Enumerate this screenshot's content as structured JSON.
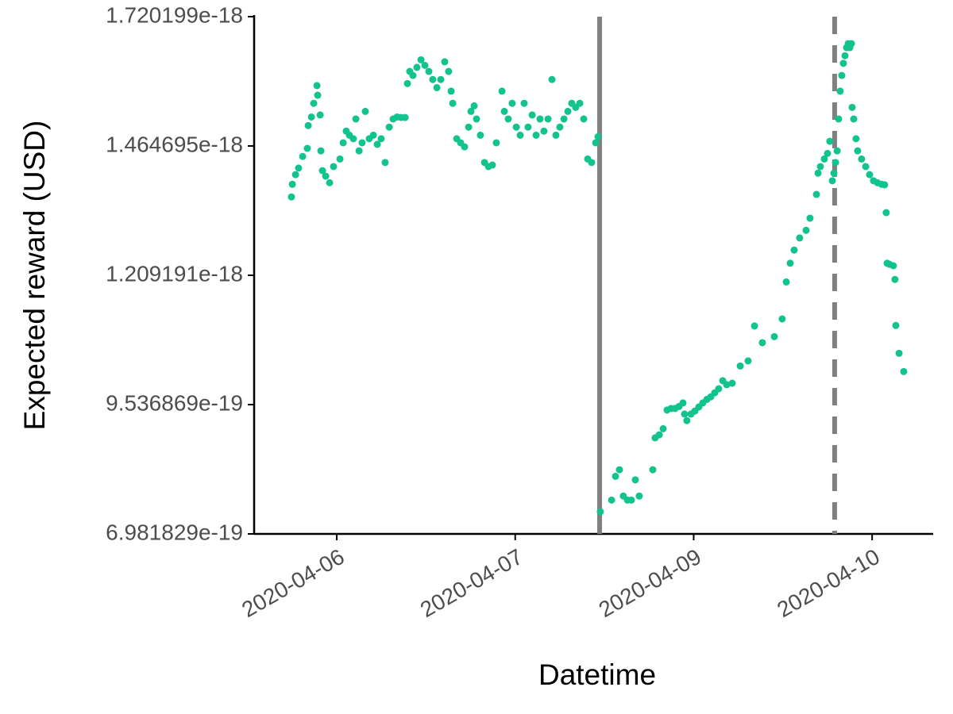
{
  "chart_data": {
    "type": "scatter",
    "x_label": "Datetime",
    "y_label": "Expected reward (USD)",
    "xlim": [
      -0.463,
      3.342
    ],
    "xticks": [
      {
        "value": 0,
        "label": "2020-04-06"
      },
      {
        "value": 1,
        "label": "2020-04-07"
      },
      {
        "value": 2,
        "label": "2020-04-09"
      },
      {
        "value": 3,
        "label": "2020-04-10"
      }
    ],
    "ylim": [
      6.981829e-19,
      1.720199e-18
    ],
    "yticks": [
      6.981829e-19,
      9.536869e-19,
      1.209191e-18,
      1.464695e-18,
      1.720199e-18
    ],
    "grid": false,
    "vlines": [
      {
        "x": 1.473,
        "linestyle": "solid",
        "color": "#808080"
      },
      {
        "x": 2.79,
        "linestyle": "dashed",
        "color": "#808080"
      }
    ],
    "series": [
      {
        "color": "#12c38e",
        "x": [
          -0.254,
          -0.249,
          -0.231,
          -0.214,
          -0.191,
          -0.165,
          -0.16,
          -0.142,
          -0.129,
          -0.111,
          -0.107,
          -0.093,
          -0.089,
          -0.08,
          -0.062,
          -0.04,
          -0.018,
          0.018,
          0.036,
          0.053,
          0.071,
          0.093,
          0.107,
          0.125,
          0.142,
          0.16,
          0.182,
          0.205,
          0.227,
          0.249,
          0.271,
          0.294,
          0.316,
          0.338,
          0.36,
          0.383,
          0.396,
          0.409,
          0.427,
          0.449,
          0.472,
          0.494,
          0.516,
          0.538,
          0.561,
          0.583,
          0.605,
          0.627,
          0.641,
          0.65,
          0.672,
          0.694,
          0.716,
          0.739,
          0.752,
          0.77,
          0.783,
          0.805,
          0.828,
          0.85,
          0.872,
          0.894,
          0.926,
          0.939,
          0.961,
          0.983,
          1.006,
          1.028,
          1.05,
          1.072,
          1.095,
          1.117,
          1.139,
          1.161,
          1.184,
          1.206,
          1.228,
          1.25,
          1.273,
          1.295,
          1.317,
          1.339,
          1.362,
          1.384,
          1.406,
          1.428,
          1.451,
          1.464,
          1.477,
          1.54,
          1.562,
          1.584,
          1.606,
          1.629,
          1.651,
          1.673,
          1.695,
          1.771,
          1.784,
          1.807,
          1.829,
          1.851,
          1.873,
          1.896,
          1.918,
          1.94,
          1.949,
          1.962,
          1.985,
          2.007,
          2.029,
          2.051,
          2.074,
          2.096,
          2.118,
          2.14,
          2.163,
          2.185,
          2.216,
          2.261,
          2.305,
          2.341,
          2.385,
          2.452,
          2.496,
          2.519,
          2.541,
          2.563,
          2.594,
          2.63,
          2.652,
          2.688,
          2.697,
          2.71,
          2.732,
          2.75,
          2.763,
          2.777,
          2.786,
          2.795,
          2.804,
          2.812,
          2.821,
          2.83,
          2.839,
          2.848,
          2.857,
          2.866,
          2.875,
          2.884,
          2.888,
          2.897,
          2.91,
          2.919,
          2.941,
          2.964,
          2.986,
          3.008,
          3.03,
          3.053,
          3.07,
          3.079,
          3.084,
          3.097,
          3.119,
          3.128,
          3.133,
          3.151,
          3.177
        ],
        "values": [
          1.364e-18,
          1.389e-18,
          1.408e-18,
          1.421e-18,
          1.444e-18,
          1.46e-18,
          1.505e-18,
          1.522e-18,
          1.549e-18,
          1.584e-18,
          1.565e-18,
          1.526e-18,
          1.455e-18,
          1.416e-18,
          1.405e-18,
          1.392e-18,
          1.424e-18,
          1.439e-18,
          1.471e-18,
          1.494e-18,
          1.486e-18,
          1.479e-18,
          1.518e-18,
          1.455e-18,
          1.471e-18,
          1.533e-18,
          1.479e-18,
          1.486e-18,
          1.468e-18,
          1.479e-18,
          1.432e-18,
          1.502e-18,
          1.518e-18,
          1.522e-18,
          1.521e-18,
          1.521e-18,
          1.588e-18,
          1.612e-18,
          1.604e-18,
          1.62e-18,
          1.635e-18,
          1.624e-18,
          1.612e-18,
          1.596e-18,
          1.58e-18,
          1.596e-18,
          1.631e-18,
          1.612e-18,
          1.573e-18,
          1.549e-18,
          1.479e-18,
          1.471e-18,
          1.463e-18,
          1.502e-18,
          1.533e-18,
          1.544e-18,
          1.518e-18,
          1.486e-18,
          1.432e-18,
          1.424e-18,
          1.427e-18,
          1.471e-18,
          1.573e-18,
          1.533e-18,
          1.518e-18,
          1.549e-18,
          1.502e-18,
          1.486e-18,
          1.549e-18,
          1.502e-18,
          1.526e-18,
          1.486e-18,
          1.518e-18,
          1.494e-18,
          1.518e-18,
          1.596e-18,
          1.486e-18,
          1.502e-18,
          1.518e-18,
          1.533e-18,
          1.549e-18,
          1.541e-18,
          1.549e-18,
          1.518e-18,
          1.439e-18,
          1.432e-18,
          1.471e-18,
          1.483e-18,
          7.42e-19,
          7.65e-19,
          8.12e-19,
          8.25e-19,
          7.73e-19,
          7.65e-19,
          7.65e-19,
          8.05e-19,
          7.73e-19,
          8.25e-19,
          8.88e-19,
          8.94e-19,
          9.06e-19,
          9.43e-19,
          9.46e-19,
          9.46e-19,
          9.5e-19,
          9.57e-19,
          9.35e-19,
          9.22e-19,
          9.35e-19,
          9.41e-19,
          9.49e-19,
          9.57e-19,
          9.64e-19,
          9.69e-19,
          9.77e-19,
          9.85e-19,
          1.001e-18,
          9.93e-19,
          9.96e-19,
          1.03e-18,
          1.04e-18,
          1.109e-18,
          1.076e-18,
          1.088e-18,
          1.123e-18,
          1.196e-18,
          1.233e-18,
          1.259e-18,
          1.283e-18,
          1.298e-18,
          1.322e-18,
          1.369e-18,
          1.411e-18,
          1.424e-18,
          1.439e-18,
          1.45e-18,
          1.474e-18,
          1.396e-18,
          1.411e-18,
          1.432e-18,
          1.455e-18,
          1.518e-18,
          1.573e-18,
          1.604e-18,
          1.628e-18,
          1.643e-18,
          1.659e-18,
          1.667e-18,
          1.659e-18,
          1.667e-18,
          1.541e-18,
          1.518e-18,
          1.479e-18,
          1.455e-18,
          1.439e-18,
          1.424e-18,
          1.408e-18,
          1.396e-18,
          1.392e-18,
          1.389e-18,
          1.388e-18,
          1.333e-18,
          1.233e-18,
          1.231e-18,
          1.228e-18,
          1.201e-18,
          1.11e-18,
          1.055e-18,
          1.019e-18
        ]
      }
    ]
  }
}
